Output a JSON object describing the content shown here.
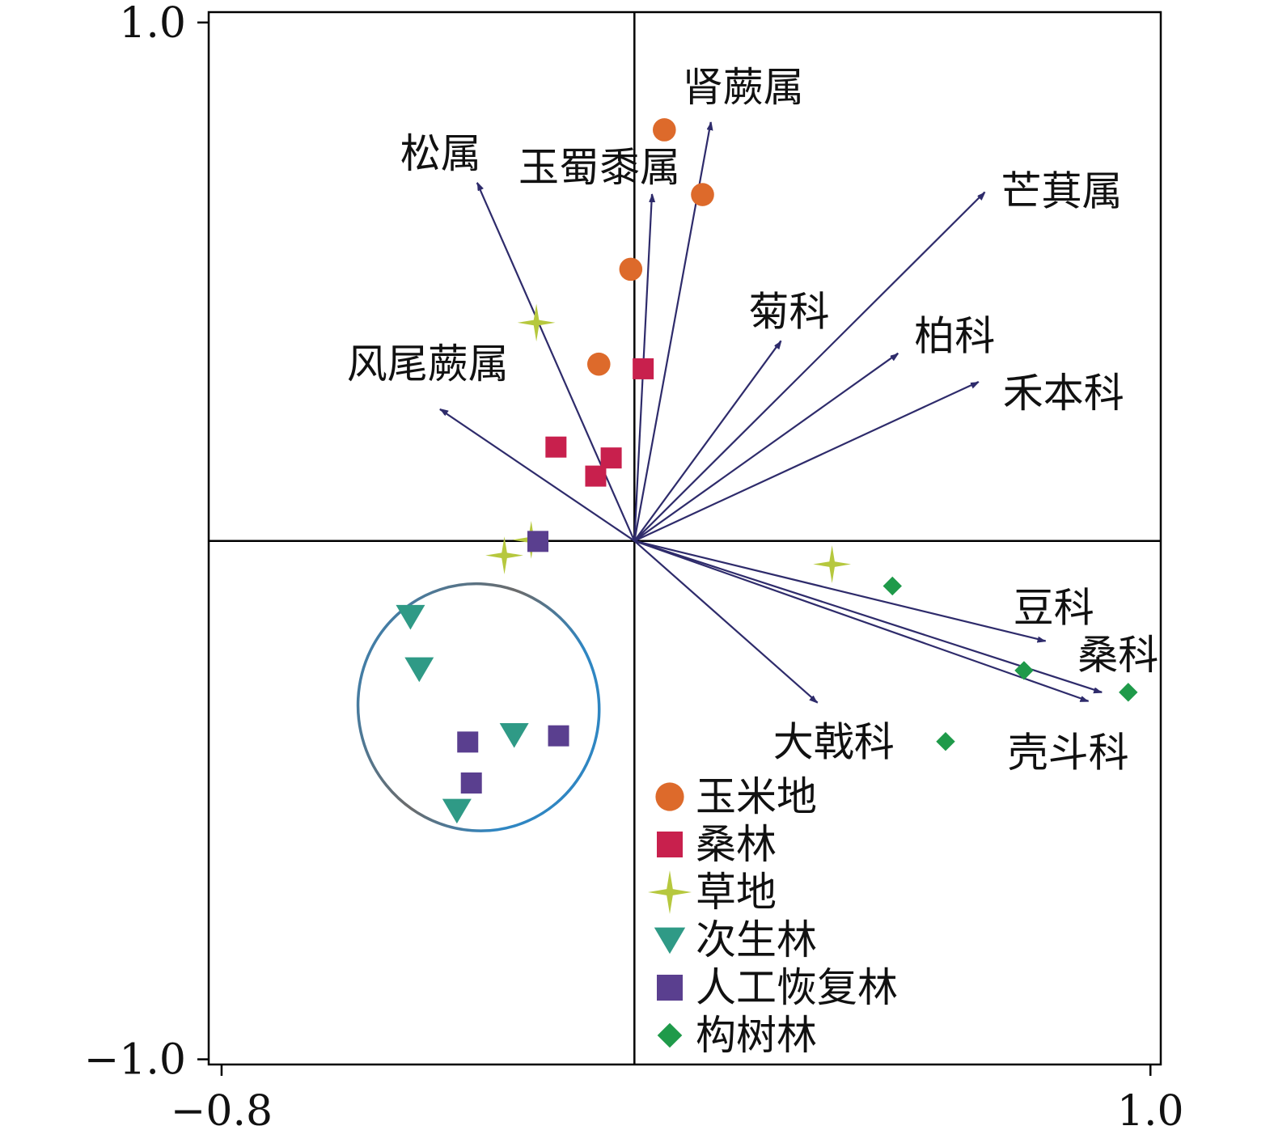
{
  "chart_data": {
    "type": "scatter",
    "subtype": "ordination-biplot",
    "title": "",
    "xlabel": "",
    "ylabel": "",
    "xlim": [
      -0.825,
      1.02
    ],
    "ylim": [
      -1.01,
      1.02
    ],
    "xticks": [
      {
        "value": -0.8,
        "label": "−0.8"
      },
      {
        "value": 1.0,
        "label": "1.0"
      }
    ],
    "yticks": [
      {
        "value": 1.0,
        "label": "1.0"
      },
      {
        "value": -1.0,
        "label": "−1.0"
      }
    ],
    "grid": false,
    "legend_position": "bottom-center",
    "colors": {
      "arrow": "#2e2b6b",
      "axis": "#000000",
      "ellipse_stroke_a": "#2f86c2",
      "ellipse_stroke_b": "#6b6b6b"
    },
    "vectors": [
      {
        "label": "肾蕨属",
        "x": 0.148,
        "y": 0.808
      },
      {
        "label": "松属",
        "x": -0.305,
        "y": 0.691
      },
      {
        "label": "玉蜀黍属",
        "x": 0.034,
        "y": 0.669
      },
      {
        "label": "芒萁属",
        "x": 0.679,
        "y": 0.673
      },
      {
        "label": "菊科",
        "x": 0.284,
        "y": 0.386
      },
      {
        "label": "柏科",
        "x": 0.511,
        "y": 0.362
      },
      {
        "label": "禾本科",
        "x": 0.667,
        "y": 0.307
      },
      {
        "label": "风尾蕨属",
        "x": -0.377,
        "y": 0.254
      },
      {
        "label": "豆科",
        "x": 0.797,
        "y": -0.193
      },
      {
        "label": "桑科",
        "x": 0.906,
        "y": -0.292
      },
      {
        "label": "壳斗科",
        "x": 0.88,
        "y": -0.309
      },
      {
        "label": "大戟科",
        "x": 0.355,
        "y": -0.312
      }
    ],
    "series": [
      {
        "name": "玉米地",
        "marker": "circle",
        "color": "#dd6a2b",
        "points": [
          [
            0.058,
            0.793
          ],
          [
            0.132,
            0.668
          ],
          [
            -0.007,
            0.524
          ],
          [
            -0.069,
            0.341
          ]
        ]
      },
      {
        "name": "桑林",
        "marker": "square",
        "color": "#c8204d",
        "points": [
          [
            0.017,
            0.332
          ],
          [
            -0.152,
            0.181
          ],
          [
            -0.045,
            0.16
          ],
          [
            -0.075,
            0.125
          ]
        ]
      },
      {
        "name": "草地",
        "marker": "star4",
        "color": "#b6c83e",
        "points": [
          [
            -0.19,
            0.421
          ],
          [
            -0.2,
            0.002
          ],
          [
            -0.252,
            -0.028
          ],
          [
            0.383,
            -0.045
          ]
        ]
      },
      {
        "name": "次生林",
        "marker": "triangle-down",
        "color": "#2f9a86",
        "points": [
          [
            -0.434,
            -0.146
          ],
          [
            -0.417,
            -0.247
          ],
          [
            -0.233,
            -0.374
          ],
          [
            -0.344,
            -0.52
          ]
        ]
      },
      {
        "name": "人工恢复林",
        "marker": "square",
        "color": "#5a3f8f",
        "points": [
          [
            -0.187,
            -0.001
          ],
          [
            -0.147,
            -0.376
          ],
          [
            -0.323,
            -0.388
          ],
          [
            -0.316,
            -0.467
          ]
        ]
      },
      {
        "name": "构树林",
        "marker": "diamond",
        "color": "#1f9a4a",
        "points": [
          [
            0.5,
            -0.087
          ],
          [
            0.603,
            -0.387
          ],
          [
            0.755,
            -0.25
          ],
          [
            0.957,
            -0.292
          ]
        ]
      }
    ],
    "ellipse": {
      "cx": -0.302,
      "cy": -0.321,
      "rx": 0.233,
      "ry": 0.239
    }
  }
}
